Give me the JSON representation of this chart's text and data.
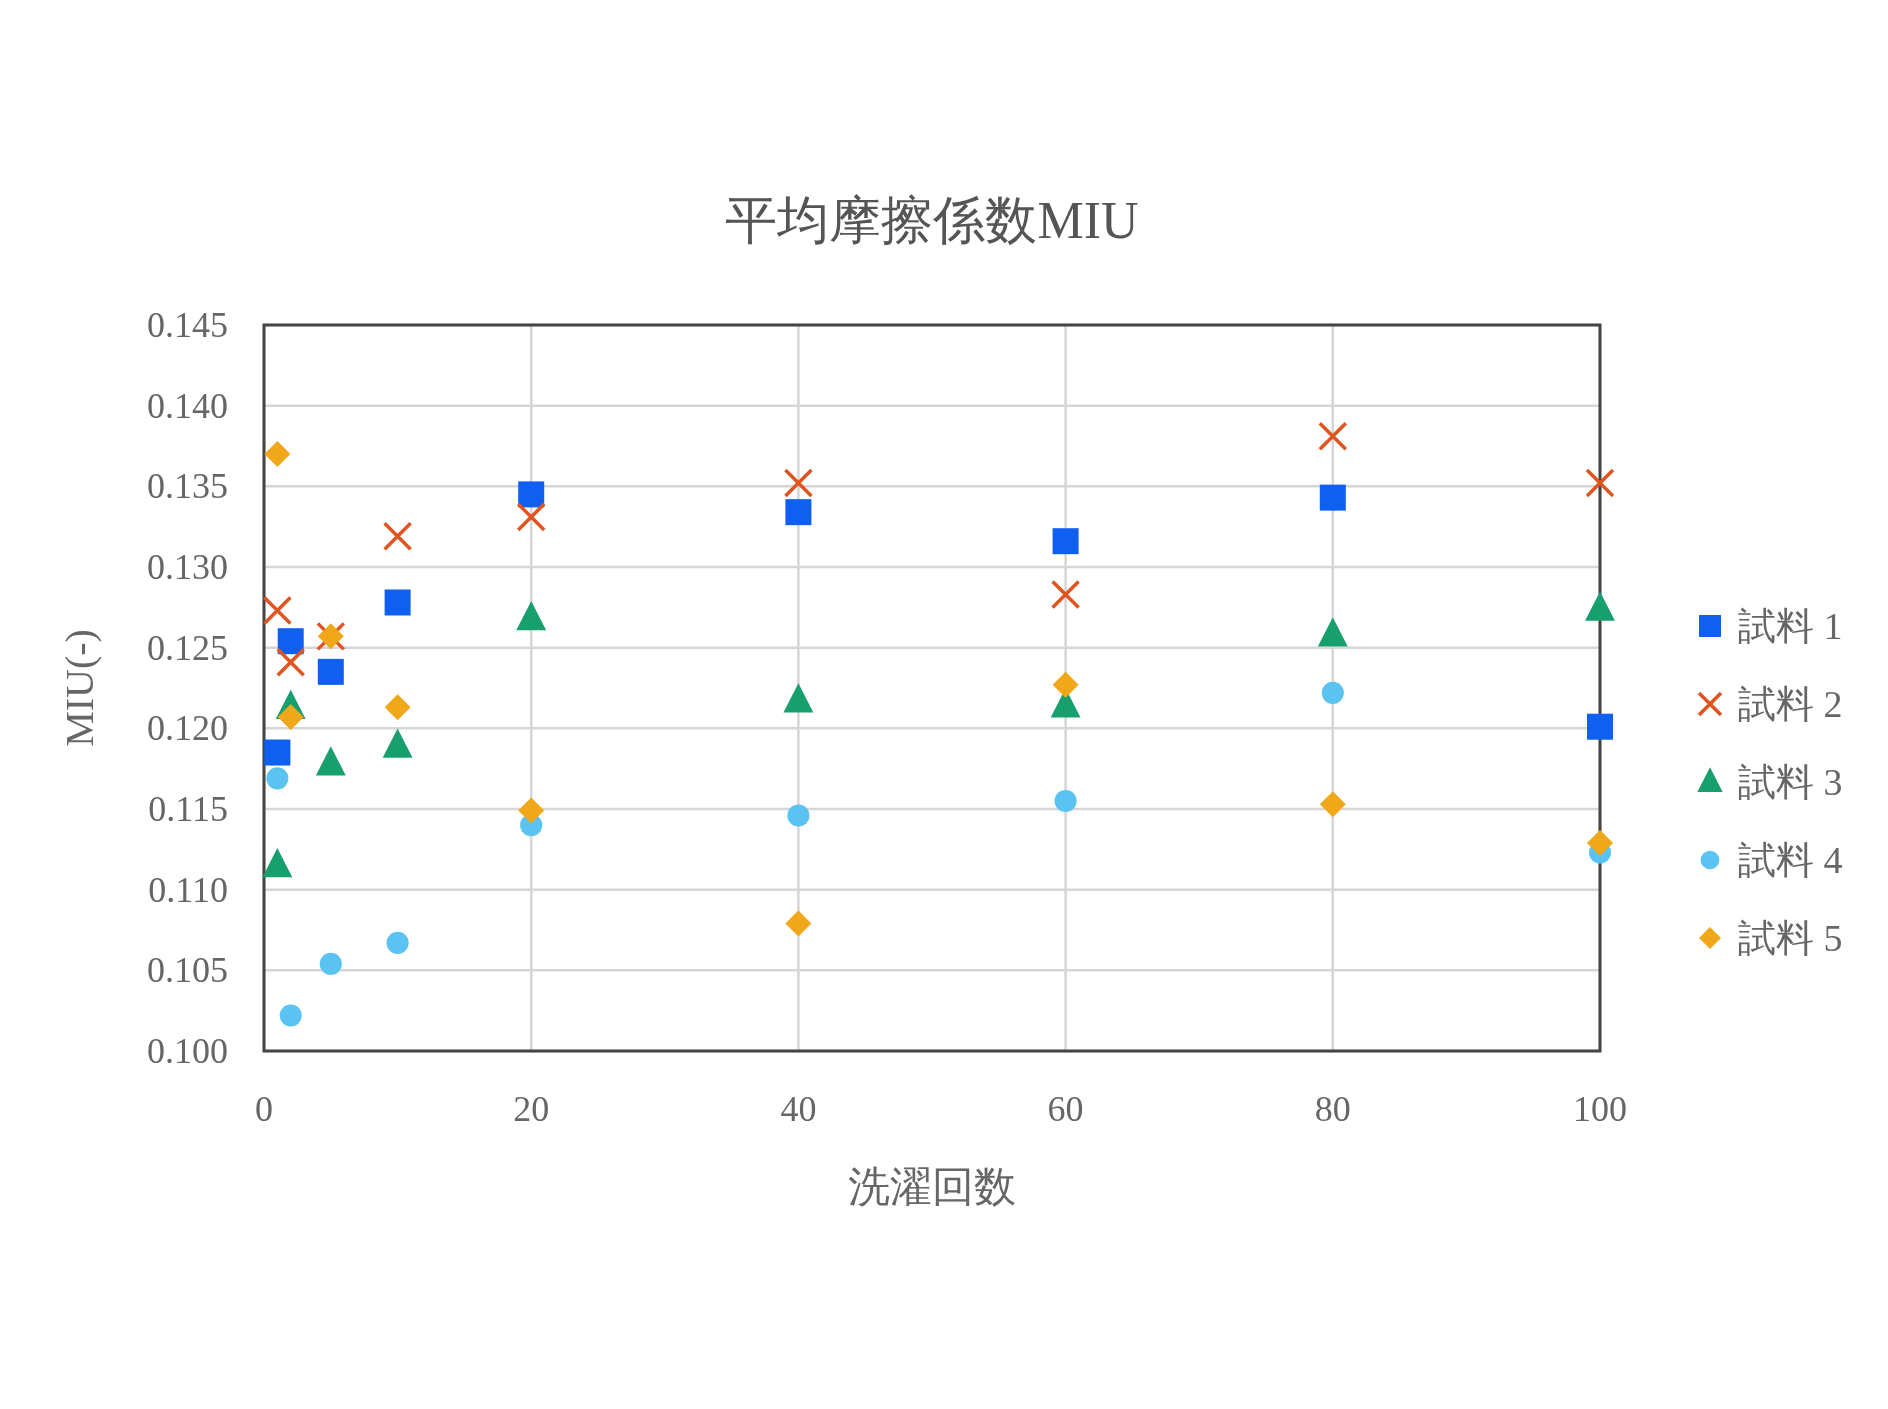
{
  "chart_data": {
    "type": "scatter",
    "title": "平均摩擦係数MIU",
    "xlabel": "洗濯回数",
    "ylabel": "MIU(-)",
    "x": [
      1,
      2,
      5,
      10,
      20,
      40,
      60,
      80,
      100
    ],
    "xlim": [
      0,
      100
    ],
    "xticks": [
      0,
      20,
      40,
      60,
      80,
      100
    ],
    "ylim": [
      0.1,
      0.145
    ],
    "yticks": [
      {
        "value": 0.1,
        "label": "0.100"
      },
      {
        "value": 0.105,
        "label": "0.105"
      },
      {
        "value": 0.11,
        "label": "0.110"
      },
      {
        "value": 0.115,
        "label": "0.115"
      },
      {
        "value": 0.12,
        "label": "0.120"
      },
      {
        "value": 0.125,
        "label": "0.125"
      },
      {
        "value": 0.13,
        "label": "0.130"
      },
      {
        "value": 0.135,
        "label": "0.135"
      },
      {
        "value": 0.14,
        "label": "0.140"
      },
      {
        "value": 0.145,
        "label": "0.145"
      }
    ],
    "grid": true,
    "legend": "right",
    "series": [
      {
        "name": "試料 1",
        "color": "#0f5ff0",
        "marker": "square",
        "values": [
          0.1185,
          0.1254,
          0.1235,
          0.1278,
          0.1345,
          0.1334,
          0.1316,
          0.1343,
          0.1201
        ]
      },
      {
        "name": "試料 2",
        "color": "#e0541f",
        "marker": "cross",
        "values": [
          0.1273,
          0.1241,
          0.1257,
          0.1319,
          0.1331,
          0.1352,
          0.1283,
          0.1381,
          0.1352
        ]
      },
      {
        "name": "試料 3",
        "color": "#17a06e",
        "marker": "triangle",
        "values": [
          0.1115,
          0.1213,
          0.1178,
          0.1189,
          0.1268,
          0.1217,
          0.1214,
          0.1258,
          0.1274
        ]
      },
      {
        "name": "試料 4",
        "color": "#5bc3f2",
        "marker": "circle",
        "values": [
          0.1169,
          0.1022,
          0.1054,
          0.1067,
          0.114,
          0.1146,
          0.1155,
          0.1222,
          0.1123
        ]
      },
      {
        "name": "試料 5",
        "color": "#f0a81a",
        "marker": "diamond",
        "values": [
          0.137,
          0.1207,
          0.1257,
          0.1213,
          0.1149,
          0.1079,
          0.1227,
          0.1153,
          0.1129
        ]
      }
    ]
  }
}
